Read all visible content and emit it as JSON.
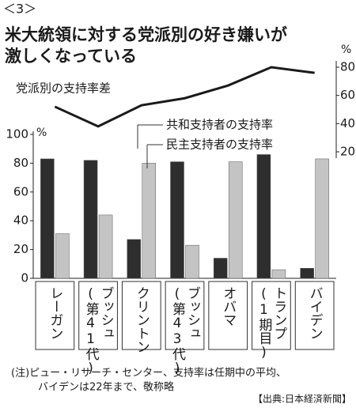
{
  "chart_data": {
    "type": "bar",
    "figure_label": "＜3＞",
    "title": [
      "米大統領に対する党派別の好き嫌いが",
      "激しくなっている"
    ],
    "categories": [
      [
        "レーガン"
      ],
      [
        "ブッシュ",
        "(第41代)"
      ],
      [
        "クリントン"
      ],
      [
        "ブッシュ",
        "(第43代)"
      ],
      [
        "オバマ"
      ],
      [
        "トランプ",
        "(1期目)"
      ],
      [
        "バイデン"
      ]
    ],
    "series": [
      {
        "name": "共和支持者の支持率",
        "color": "#2e2e2e",
        "values": [
          83,
          82,
          27,
          81,
          14,
          86,
          7
        ]
      },
      {
        "name": "民主支持者の支持率",
        "color": "#c4c4c4",
        "values": [
          31,
          44,
          80,
          23,
          81,
          6,
          83
        ]
      },
      {
        "name": "党派別の支持率差",
        "type": "line",
        "axis": "y2",
        "color": "#1a1a1a",
        "values": [
          52,
          38,
          53,
          58,
          67,
          80,
          76
        ]
      }
    ],
    "ylim": [
      0,
      100
    ],
    "yticks": [
      0,
      20,
      40,
      60,
      80,
      100
    ],
    "yunit": "%",
    "y2lim": [
      20,
      80
    ],
    "y2ticks": [
      20,
      40,
      60,
      80
    ],
    "y2unit": "%",
    "note": [
      "(注)ピュー・リサーチ・センター、支持率は任期中の平均、",
      "バイデンは22年まで、敬称略"
    ],
    "source": "【出典:日本経済新聞】"
  }
}
